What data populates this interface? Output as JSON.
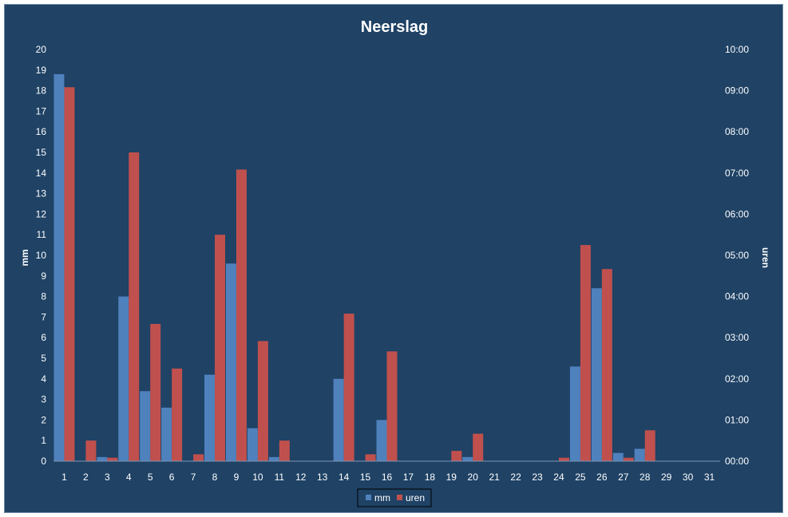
{
  "chart_data": {
    "type": "bar",
    "title": "Neerslag",
    "ylabel": "mm",
    "y2label": "uren",
    "categories": [
      "1",
      "2",
      "3",
      "4",
      "5",
      "6",
      "7",
      "8",
      "9",
      "10",
      "11",
      "12",
      "13",
      "14",
      "15",
      "16",
      "17",
      "18",
      "19",
      "20",
      "21",
      "22",
      "23",
      "24",
      "25",
      "26",
      "27",
      "28",
      "29",
      "30",
      "31"
    ],
    "ylim": [
      0,
      20
    ],
    "y2lim": [
      "00:00",
      "10:00"
    ],
    "yticks": [
      "0",
      "1",
      "2",
      "3",
      "4",
      "5",
      "6",
      "7",
      "8",
      "9",
      "10",
      "11",
      "12",
      "13",
      "14",
      "15",
      "16",
      "17",
      "18",
      "19",
      "20"
    ],
    "y2ticks": [
      "00:00",
      "01:00",
      "02:00",
      "03:00",
      "04:00",
      "05:00",
      "06:00",
      "07:00",
      "08:00",
      "09:00",
      "10:00"
    ],
    "grid": false,
    "legend_position": "bottom",
    "series": [
      {
        "name": "mm",
        "axis": "left",
        "color": "#4f81bd",
        "values": [
          18.8,
          0,
          0.2,
          8,
          3.4,
          2.6,
          0,
          4.2,
          9.6,
          1.6,
          0.2,
          0,
          0,
          4,
          0,
          2,
          0,
          0,
          0,
          0.2,
          0,
          0,
          0,
          0,
          4.6,
          8.4,
          0.4,
          0.6,
          0,
          0,
          0
        ]
      },
      {
        "name": "uren",
        "axis": "right",
        "color": "#c0504d",
        "values": [
          "09:05",
          "00:30",
          "00:05",
          "07:30",
          "03:20",
          "02:15",
          "00:10",
          "05:30",
          "07:05",
          "02:55",
          "00:30",
          "00:00",
          "00:00",
          "03:35",
          "00:10",
          "02:40",
          "00:00",
          "00:00",
          "00:15",
          "00:40",
          "00:00",
          "00:00",
          "00:00",
          "00:05",
          "05:15",
          "04:40",
          "00:05",
          "00:45",
          "00:00",
          "00:00",
          "00:00"
        ]
      }
    ]
  }
}
